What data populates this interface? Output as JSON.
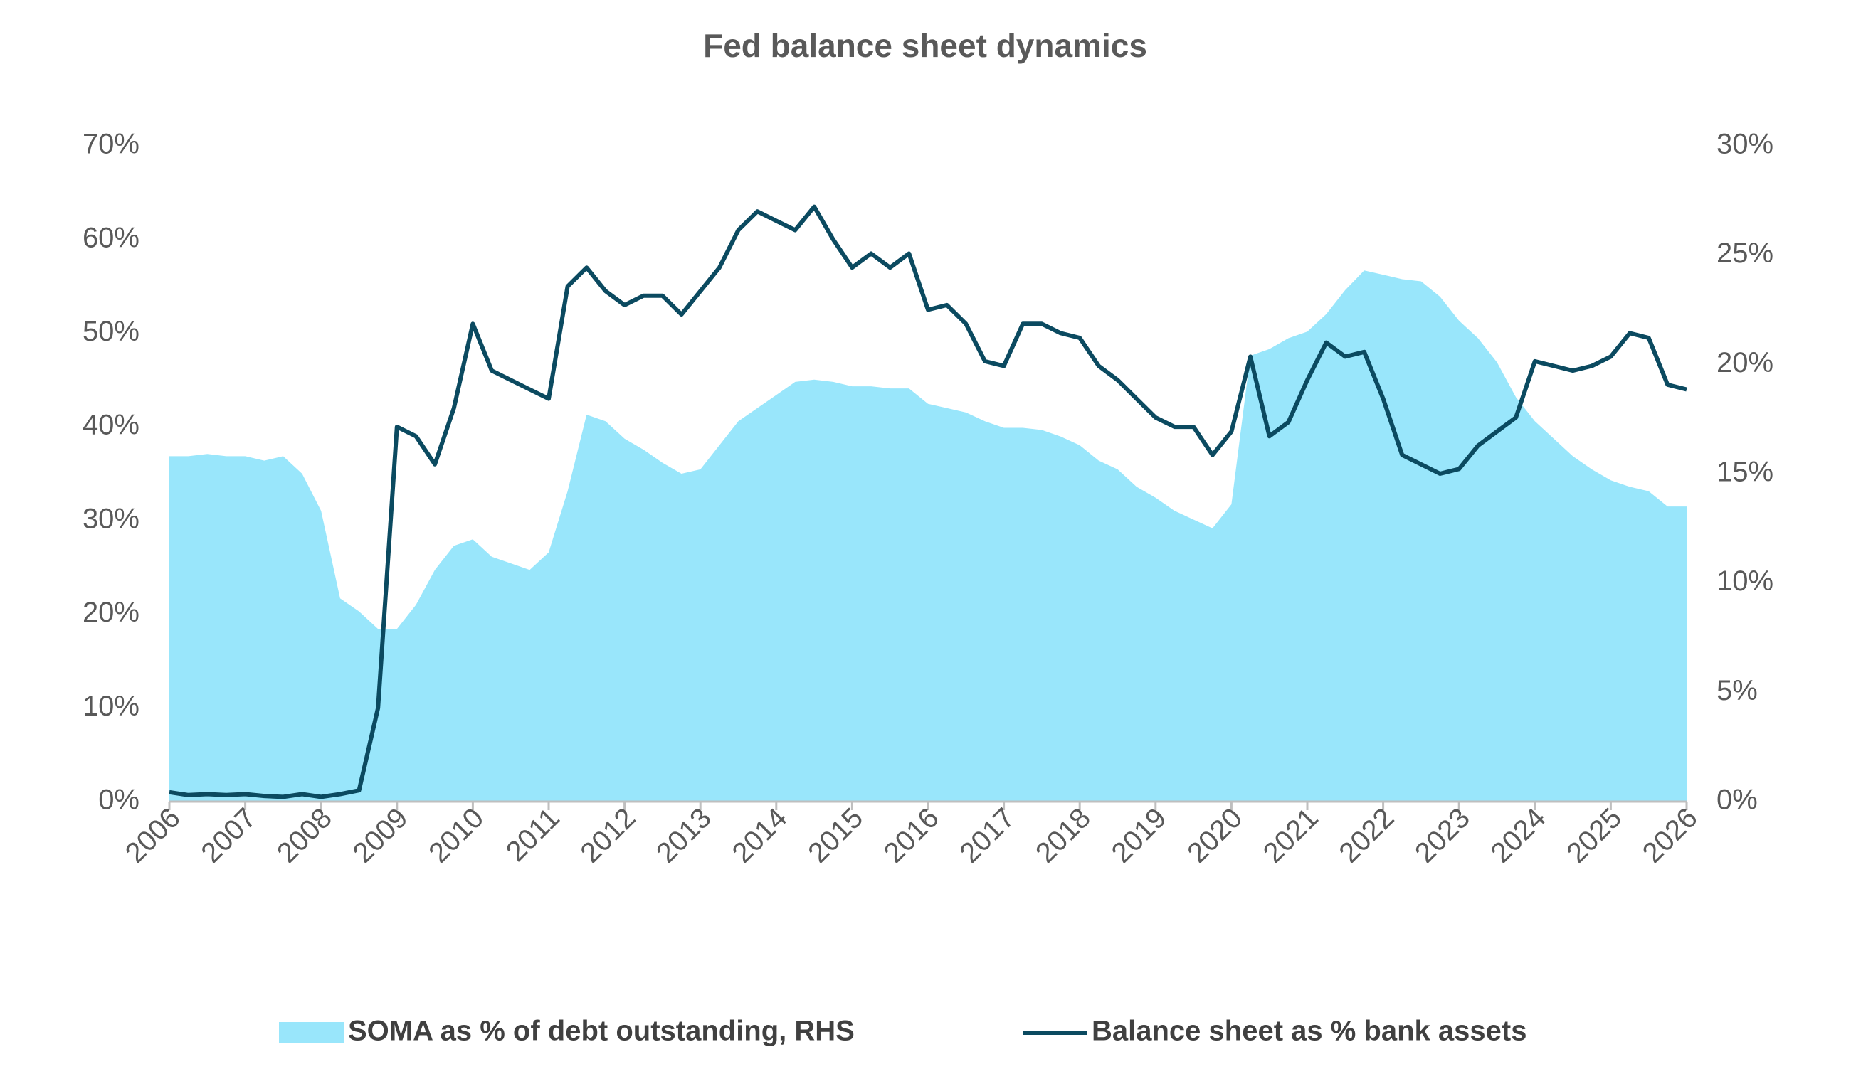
{
  "chart_data": {
    "type": "line",
    "title": "Fed balance sheet dynamics",
    "x": [
      2006,
      2006.25,
      2006.5,
      2006.75,
      2007,
      2007.25,
      2007.5,
      2007.75,
      2008,
      2008.25,
      2008.5,
      2008.75,
      2009,
      2009.25,
      2009.5,
      2009.75,
      2010,
      2010.25,
      2010.5,
      2010.75,
      2011,
      2011.25,
      2011.5,
      2011.75,
      2012,
      2012.25,
      2012.5,
      2012.75,
      2013,
      2013.25,
      2013.5,
      2013.75,
      2014,
      2014.25,
      2014.5,
      2014.75,
      2015,
      2015.25,
      2015.5,
      2015.75,
      2016,
      2016.25,
      2016.5,
      2016.75,
      2017,
      2017.25,
      2017.5,
      2017.75,
      2018,
      2018.25,
      2018.5,
      2018.75,
      2019,
      2019.25,
      2019.5,
      2019.75,
      2020,
      2020.25,
      2020.5,
      2020.75,
      2021,
      2021.25,
      2021.5,
      2021.75,
      2022,
      2022.25,
      2022.5,
      2022.75,
      2023,
      2023.25,
      2023.5,
      2023.75,
      2024,
      2024.25,
      2024.5,
      2024.75,
      2025,
      2025.25,
      2025.5,
      2025.75,
      2026
    ],
    "xlim": [
      2006,
      2026
    ],
    "xticks": [
      2006,
      2007,
      2008,
      2009,
      2010,
      2011,
      2012,
      2013,
      2014,
      2015,
      2016,
      2017,
      2018,
      2019,
      2020,
      2021,
      2022,
      2023,
      2024,
      2025,
      2026
    ],
    "ylim": [
      0,
      70
    ],
    "yticks": [
      {
        "value": 0,
        "label": "0%"
      },
      {
        "value": 10,
        "label": "10%"
      },
      {
        "value": 20,
        "label": "20%"
      },
      {
        "value": 30,
        "label": "30%"
      },
      {
        "value": 40,
        "label": "40%"
      },
      {
        "value": 50,
        "label": "50%"
      },
      {
        "value": 60,
        "label": "60%"
      },
      {
        "value": 70,
        "label": "70%"
      }
    ],
    "y2lim": [
      0,
      30
    ],
    "y2ticks": [
      {
        "value": 0,
        "label": "0%"
      },
      {
        "value": 5,
        "label": "5%"
      },
      {
        "value": 10,
        "label": "10%"
      },
      {
        "value": 15,
        "label": "15%"
      },
      {
        "value": 20,
        "label": "20%"
      },
      {
        "value": 25,
        "label": "25%"
      },
      {
        "value": 30,
        "label": "30%"
      }
    ],
    "legend": "bottom",
    "series": [
      {
        "name": "SOMA as % of debt outstanding, RHS",
        "type": "area",
        "axis": "y2",
        "color": "#99e6fb",
        "values": [
          15.8,
          15.8,
          15.9,
          15.8,
          15.8,
          15.6,
          15.8,
          15.0,
          13.3,
          9.3,
          8.7,
          7.9,
          7.9,
          9.0,
          10.6,
          11.7,
          12.0,
          11.2,
          10.9,
          10.6,
          11.4,
          14.2,
          17.7,
          17.4,
          16.6,
          16.1,
          15.5,
          15.0,
          15.2,
          16.3,
          17.4,
          18.0,
          18.6,
          19.2,
          19.3,
          19.2,
          19.0,
          19.0,
          18.9,
          18.9,
          18.2,
          18.0,
          17.8,
          17.4,
          17.1,
          17.1,
          17.0,
          16.7,
          16.3,
          15.6,
          15.2,
          14.4,
          13.9,
          13.3,
          12.9,
          12.5,
          13.6,
          20.4,
          20.7,
          21.2,
          21.5,
          22.3,
          23.4,
          24.3,
          24.1,
          23.9,
          23.8,
          23.1,
          22.0,
          21.2,
          20.1,
          18.5,
          17.4,
          16.6,
          15.8,
          15.2,
          14.7,
          14.4,
          14.2,
          13.5,
          13.5
        ]
      },
      {
        "name": "Balance sheet as % bank assets",
        "type": "line",
        "color": "#0b4a60",
        "values": [
          1,
          0.7,
          0.8,
          0.7,
          0.8,
          0.6,
          0.5,
          0.8,
          0.5,
          0.8,
          1.2,
          10,
          40,
          39,
          36,
          42,
          51,
          46,
          45,
          44,
          43,
          55,
          57,
          54.5,
          53,
          54,
          54,
          52,
          54.5,
          57,
          61,
          63,
          62,
          61,
          63.5,
          60,
          57,
          58.5,
          57,
          58.5,
          52.5,
          53,
          51,
          47,
          46.5,
          51,
          51,
          50,
          49.5,
          46.5,
          45,
          43,
          41,
          40,
          40,
          37,
          39.5,
          47.5,
          39,
          40.5,
          45,
          49,
          47.5,
          48,
          43,
          37,
          36,
          35,
          35.5,
          38,
          39.5,
          41,
          47,
          46.5,
          46,
          46.5,
          47.5,
          50,
          49.5,
          44.5,
          44
        ]
      }
    ]
  }
}
